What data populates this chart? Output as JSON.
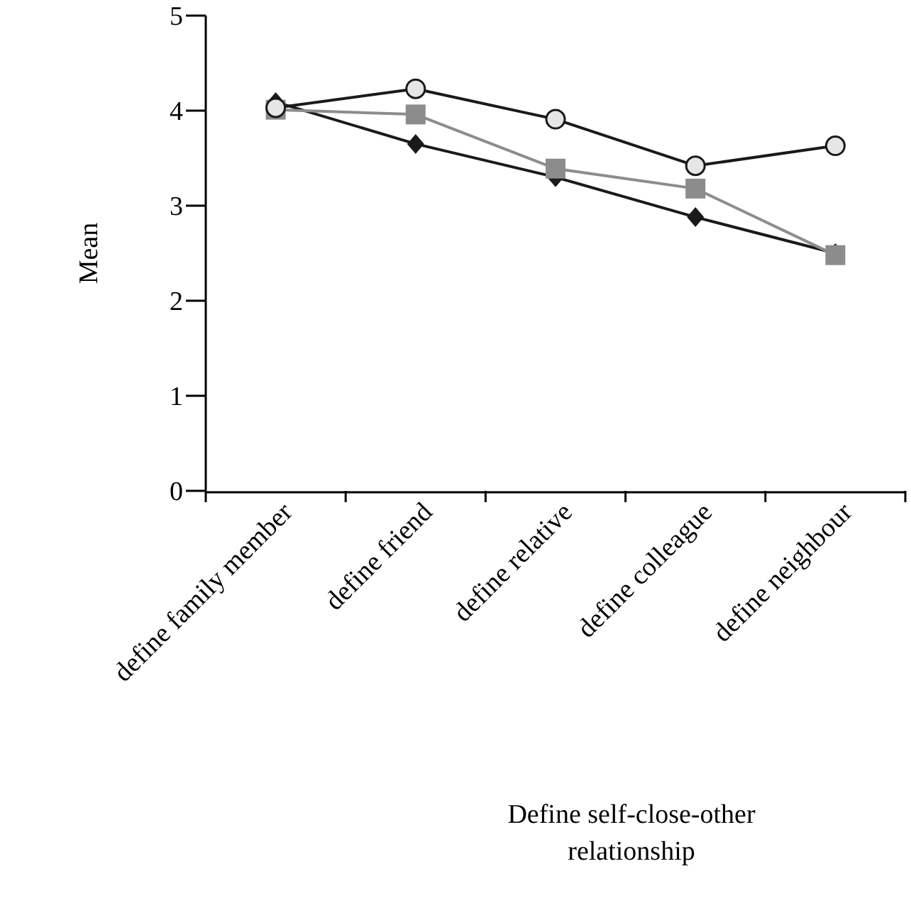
{
  "chart_data": {
    "type": "line",
    "ylabel": "Mean",
    "xlabel": "Define self-close-other relationship",
    "categories": [
      "define family member",
      "define friend",
      "define relative",
      "define colleague",
      "define neighbour"
    ],
    "ylim": [
      0,
      5
    ],
    "yticks": [
      0,
      1,
      2,
      3,
      4,
      5
    ],
    "series": [
      {
        "color": "#1a1a1a",
        "marker": "diamond",
        "values": [
          4.09,
          3.65,
          3.3,
          2.88,
          2.5
        ]
      },
      {
        "color": "#8c8c8c",
        "marker": "square",
        "values": [
          4.01,
          3.96,
          3.39,
          3.18,
          2.48
        ]
      },
      {
        "color": "#1a1a1a",
        "marker": "circle",
        "values": [
          4.03,
          4.23,
          3.91,
          3.42,
          3.63
        ]
      }
    ]
  }
}
